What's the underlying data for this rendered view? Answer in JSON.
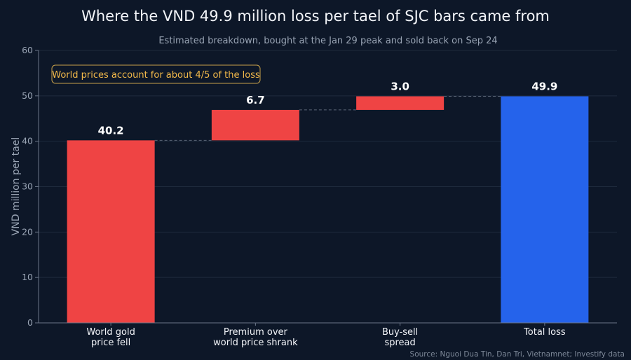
{
  "chart_data": {
    "type": "bar",
    "subtype": "waterfall",
    "title": "Where the VND 49.9 million loss per tael of SJC bars came from",
    "subtitle": "Estimated breakdown, bought at the Jan 29 peak and sold back on Sep 24",
    "ylabel": "VND million per tael",
    "xlabel": "",
    "ylim": [
      0,
      60
    ],
    "yticks": [
      0,
      10,
      20,
      30,
      40,
      50,
      60
    ],
    "grid": true,
    "categories": [
      [
        "World gold",
        "price fell"
      ],
      [
        "Premium over",
        "world price shrank"
      ],
      [
        "Buy-sell",
        "spread"
      ],
      [
        "Total loss"
      ]
    ],
    "values": [
      40.2,
      6.7,
      3.0,
      49.9
    ],
    "value_labels": [
      "40.2",
      "6.7",
      "3.0",
      "49.9"
    ],
    "is_total": [
      false,
      false,
      false,
      true
    ],
    "colors": {
      "component": "#ef4444",
      "total": "#2563eb",
      "connector": "#5b6677",
      "grid": "#1f2b3d",
      "axis": "#6b7688"
    },
    "annotation": {
      "text": "World prices account for about 4/5 of the loss",
      "color": "#f2b94a"
    },
    "source": "Source: Nguoi Dua Tin, Dan Tri, Vietnamnet; Investify data"
  }
}
